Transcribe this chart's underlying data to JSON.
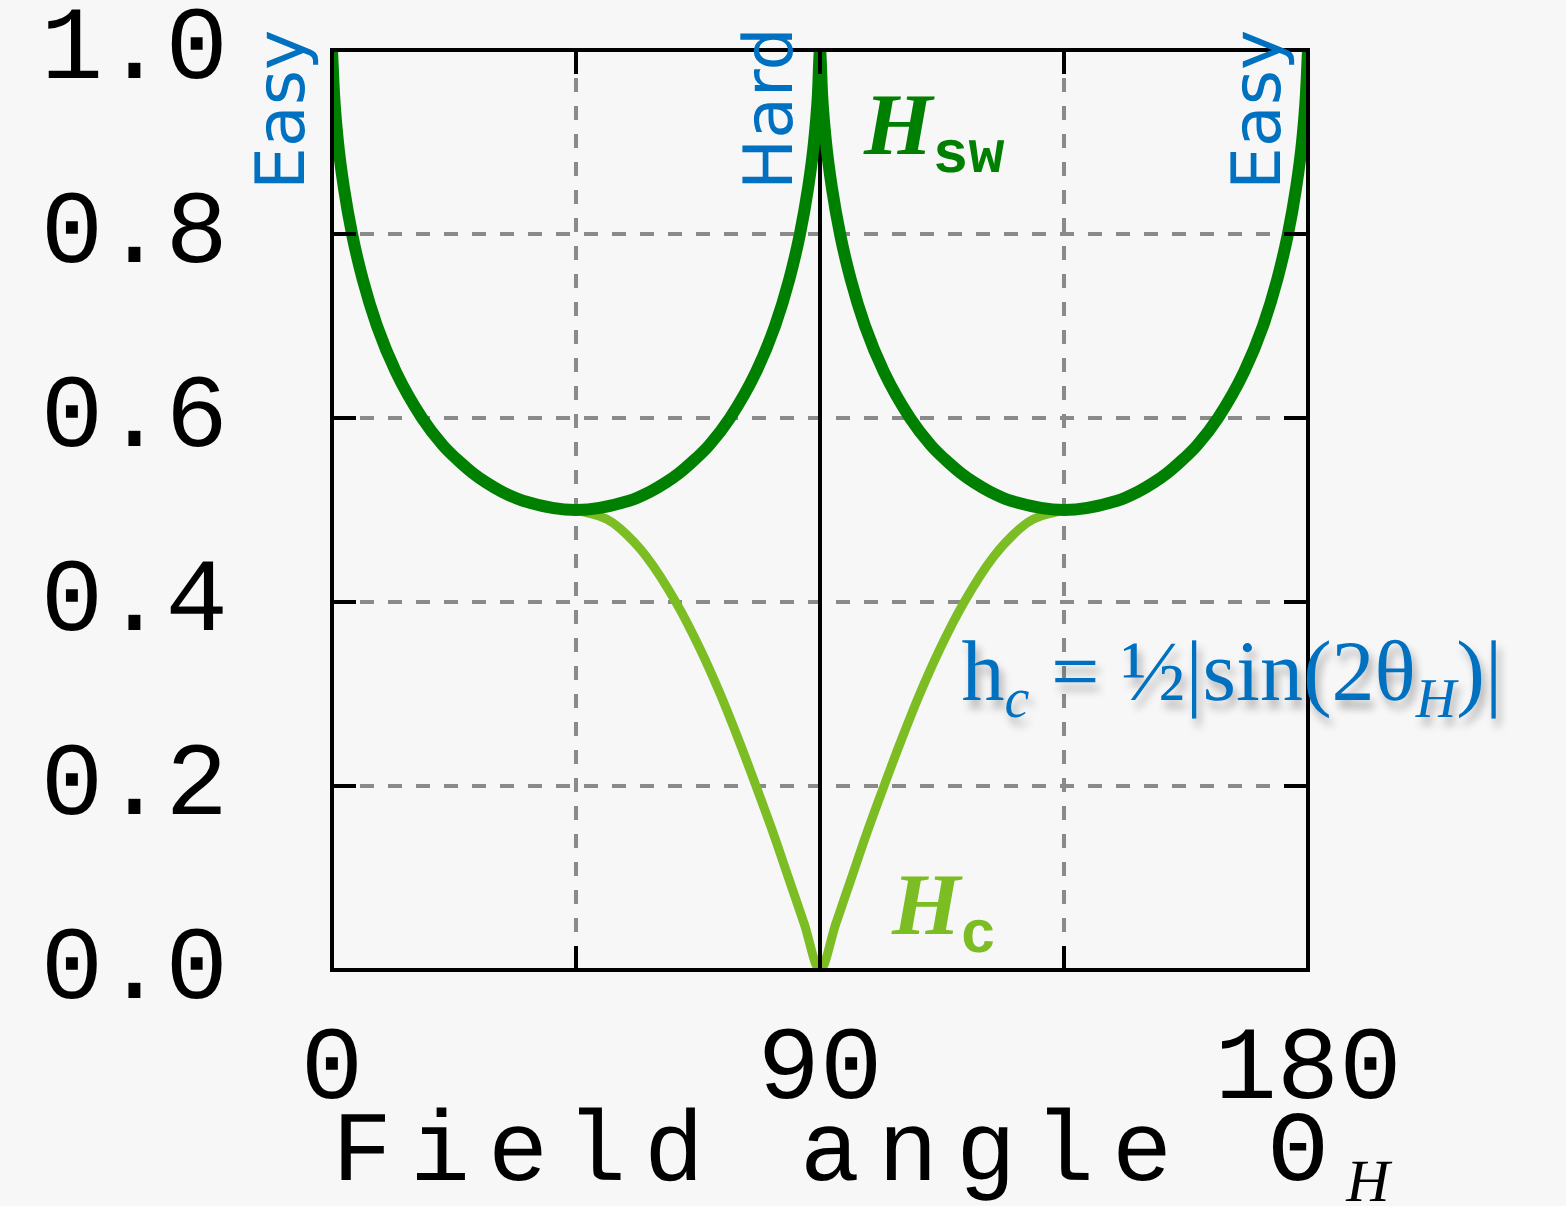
{
  "chart_data": {
    "type": "line",
    "xlabel": "Field angle Θ$_{H}$",
    "xlim": [
      0,
      180
    ],
    "xticks": [
      0,
      {
        "value": 45,
        "label": null
      },
      90,
      {
        "value": 135,
        "label": null
      },
      180
    ],
    "ylim": [
      0,
      1
    ],
    "yticks": [
      {
        "value": 0,
        "label": "0.0"
      },
      0.2,
      0.4,
      0.6,
      0.8,
      {
        "value": 1,
        "label": "1.0"
      }
    ],
    "grid": true,
    "ref_lines": [
      {
        "axis": "x",
        "value": 90,
        "color": "#000000"
      }
    ],
    "series": [
      {
        "name": "H$_{sw}$",
        "color": "#008000",
        "x": [
          0,
          0.4,
          1.1,
          2.2,
          3.7,
          5.7,
          8.3,
          11.8,
          16.6,
          20.5,
          24,
          26,
          28.4,
          31.3,
          35.2,
          45,
          54.8,
          58.7,
          61.6,
          64,
          66,
          69.5,
          73.4,
          78.2,
          81.7,
          84.3,
          86.3,
          87.8,
          88.9,
          89.6,
          90,
          90.4,
          91.1,
          92.2,
          93.7,
          95.7,
          98.3,
          101.8,
          106.6,
          110.5,
          114,
          116,
          118.4,
          121.3,
          125.2,
          135,
          144.8,
          148.7,
          151.6,
          154,
          156,
          159.5,
          163.4,
          168.2,
          171.7,
          174.3,
          176.3,
          177.8,
          178.9,
          179.6,
          180
        ],
        "values": [
          1,
          0.95,
          0.9,
          0.85,
          0.8,
          0.75,
          0.7,
          0.65,
          0.6,
          0.57,
          0.55,
          0.54,
          0.53,
          0.52,
          0.51,
          0.5,
          0.51,
          0.52,
          0.53,
          0.54,
          0.55,
          0.57,
          0.6,
          0.65,
          0.7,
          0.75,
          0.8,
          0.85,
          0.9,
          0.95,
          1,
          0.95,
          0.9,
          0.85,
          0.8,
          0.75,
          0.7,
          0.65,
          0.6,
          0.57,
          0.55,
          0.54,
          0.53,
          0.52,
          0.51,
          0.5,
          0.51,
          0.52,
          0.53,
          0.54,
          0.55,
          0.57,
          0.6,
          0.65,
          0.7,
          0.75,
          0.8,
          0.85,
          0.9,
          0.95,
          1
        ]
      },
      {
        "name": "H$_{c}$",
        "color": "#7cbd24",
        "x": [
          45,
          50.7,
          53.1,
          57.9,
          63.4,
          67.8,
          71.6,
          75,
          78.2,
          81.3,
          84.2,
          87.1,
          90,
          92.9,
          95.8,
          98.7,
          101.8,
          105,
          108.4,
          112.2,
          116.6,
          122.1,
          126.9,
          129.3,
          135
        ],
        "values": [
          0.5,
          0.49,
          0.48,
          0.45,
          0.4,
          0.35,
          0.3,
          0.25,
          0.2,
          0.15,
          0.1,
          0.05,
          0,
          0.05,
          0.1,
          0.15,
          0.2,
          0.25,
          0.3,
          0.35,
          0.4,
          0.45,
          0.48,
          0.49,
          0.5
        ]
      }
    ],
    "annotations": [
      {
        "text": "Easy",
        "x": 0,
        "y": 1
      },
      {
        "text": "Hard",
        "x": 90,
        "y": 1
      },
      {
        "text": "Easy",
        "x": 180,
        "y": 1
      },
      "h$_{c}$ = ½|sin(2θ$_{H}$)|"
    ]
  }
}
